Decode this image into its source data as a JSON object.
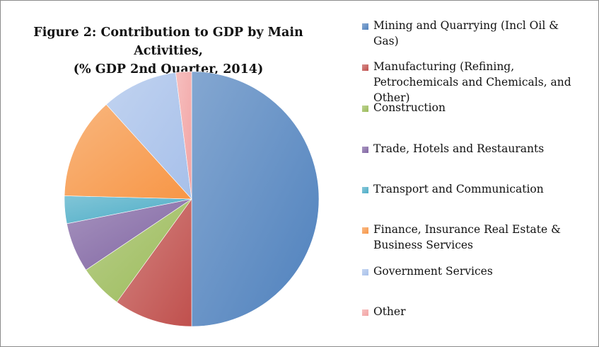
{
  "chart_data": {
    "type": "pie",
    "title_lines": [
      "Figure 2: Contribution to GDP by Main Activities,",
      "(% GDP 2nd Quarter, 2014)"
    ],
    "start_angle_deg": 0,
    "direction": "clockwise",
    "slices": [
      {
        "label": "Mining and Quarrying (Incl Oil & Gas)",
        "value": 50.0,
        "color": "#4f81bd"
      },
      {
        "label": "Manufacturing (Refining, Petrochemicals and Chemicals, and Other)",
        "value": 10.0,
        "color": "#c0504d"
      },
      {
        "label": "Construction",
        "value": 5.6,
        "color": "#9bbb59"
      },
      {
        "label": "Trade, Hotels and Restaurants",
        "value": 6.3,
        "color": "#8064a2"
      },
      {
        "label": "Transport and Communication",
        "value": 3.5,
        "color": "#4bacc6"
      },
      {
        "label": "Finance, Insurance Real Estate & Business  Services",
        "value": 12.9,
        "color": "#f79646"
      },
      {
        "label": "Government Services",
        "value": 9.7,
        "color": "#a7c0ea"
      },
      {
        "label": "Other",
        "value": 2.0,
        "color": "#f2a3a3"
      }
    ],
    "legend_position": "right"
  }
}
